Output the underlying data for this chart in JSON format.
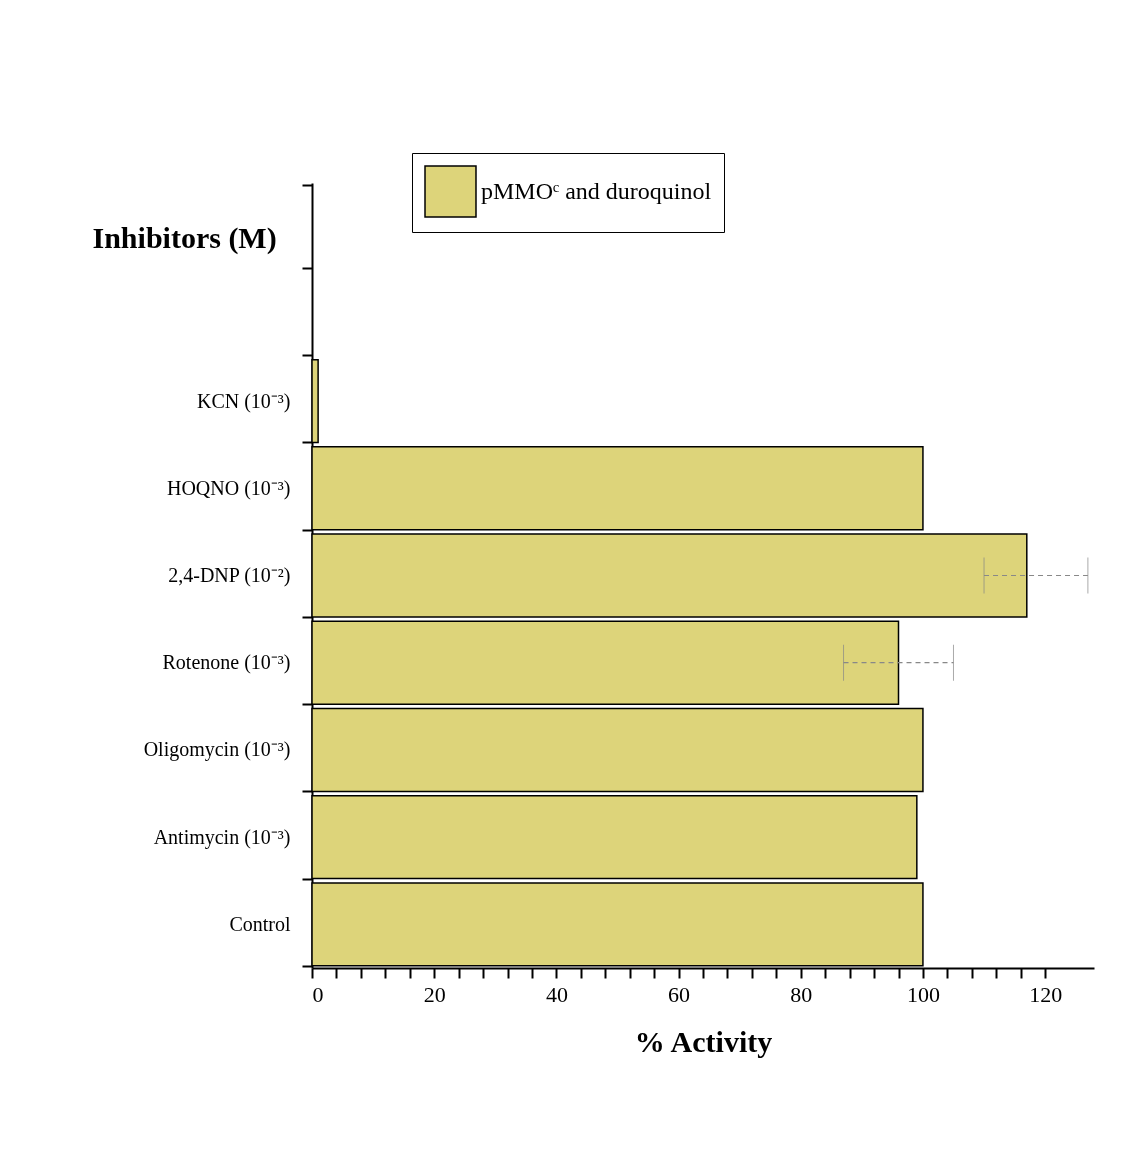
{
  "chart_data": {
    "type": "bar",
    "orientation": "horizontal",
    "xlabel": "% Activity",
    "ylabel": "Inhibitors (M)",
    "categories": [
      null,
      null,
      "KCN (10⁻³)",
      "HOQNO (10⁻³)",
      "2,4-DNP (10⁻²)",
      "Rotenone (10⁻³)",
      "Oligomycin (10⁻³)",
      "Antimycin (10⁻³)",
      "Control"
    ],
    "series": [
      {
        "name": "pMMOᶜ and duroquinol",
        "color": "#ddd47a",
        "values": [
          null,
          null,
          1,
          100,
          117,
          96,
          100,
          99,
          100
        ],
        "errors": [
          null,
          null,
          null,
          null,
          [
            110,
            127
          ],
          [
            87,
            105
          ],
          null,
          null,
          null
        ]
      }
    ],
    "xlim": [
      0,
      128
    ],
    "xticks": [
      0,
      {
        "value": 4,
        "label": null
      },
      {
        "value": 8,
        "label": null
      },
      {
        "value": 12,
        "label": null
      },
      {
        "value": 16,
        "label": null
      },
      20,
      {
        "value": 24,
        "label": null
      },
      {
        "value": 28,
        "label": null
      },
      {
        "value": 32,
        "label": null
      },
      {
        "value": 36,
        "label": null
      },
      40,
      {
        "value": 44,
        "label": null
      },
      {
        "value": 48,
        "label": null
      },
      {
        "value": 52,
        "label": null
      },
      {
        "value": 56,
        "label": null
      },
      60,
      {
        "value": 64,
        "label": null
      },
      {
        "value": 68,
        "label": null
      },
      {
        "value": 72,
        "label": null
      },
      {
        "value": 76,
        "label": null
      },
      80,
      {
        "value": 84,
        "label": null
      },
      {
        "value": 88,
        "label": null
      },
      {
        "value": 92,
        "label": null
      },
      {
        "value": 96,
        "label": null
      },
      100,
      {
        "value": 104,
        "label": null
      },
      {
        "value": 108,
        "label": null
      },
      {
        "value": 112,
        "label": null
      },
      {
        "value": 116,
        "label": null
      },
      120
    ],
    "legend": "top",
    "grid": false
  }
}
